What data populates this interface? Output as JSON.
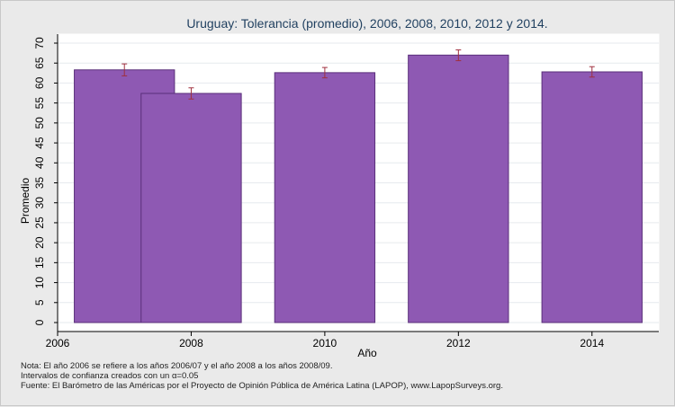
{
  "chart_data": {
    "type": "bar",
    "title": "Uruguay: Tolerancia (promedio), 2006, 2008, 2010, 2012 y 2014.",
    "xlabel": "Año",
    "ylabel": "Promedio",
    "ylim": [
      0,
      70
    ],
    "y_ticks": [
      0,
      5,
      10,
      15,
      20,
      25,
      30,
      35,
      40,
      45,
      50,
      55,
      60,
      65,
      70
    ],
    "xlim": [
      2006,
      2015
    ],
    "x_ticks": [
      2006,
      2008,
      2010,
      2012,
      2014
    ],
    "grid": true,
    "bar_color": "#8e59b3",
    "bar_edge_color": "#5a2f7a",
    "error_bar_color": "#a0303f",
    "bars": [
      {
        "x_start": 2006.25,
        "x_end": 2007.75,
        "value": 63.3,
        "ci_low": 61.8,
        "ci_high": 64.8
      },
      {
        "x_start": 2007.25,
        "x_end": 2008.75,
        "value": 57.4,
        "ci_low": 56.0,
        "ci_high": 58.8
      },
      {
        "x_start": 2009.25,
        "x_end": 2010.75,
        "value": 62.6,
        "ci_low": 61.3,
        "ci_high": 63.9
      },
      {
        "x_start": 2011.25,
        "x_end": 2012.75,
        "value": 67.0,
        "ci_low": 65.6,
        "ci_high": 68.3
      },
      {
        "x_start": 2013.25,
        "x_end": 2014.75,
        "value": 62.8,
        "ci_low": 61.5,
        "ci_high": 64.1
      }
    ]
  },
  "notes": {
    "line1": "Nota: El año 2006 se refiere a los años 2006/07 y el año 2008 a los años 2008/09.",
    "line2": "Intervalos de confianza creados con un α=0.05",
    "line3": "Fuente: El Barómetro de las Américas por el Proyecto de Opinión Pública de América Latina (LAPOP), www.LapopSurveys.org."
  }
}
